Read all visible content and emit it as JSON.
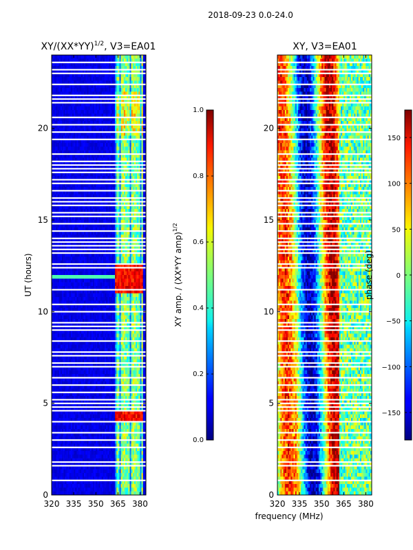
{
  "figure": {
    "suptitle": "2018-09-23 0.0-24.0",
    "shared_xlabel": "frequency (MHz)"
  },
  "chart_data": [
    {
      "type": "heatmap",
      "title_main": "XY/(XX*YY)",
      "title_sup": "1/2",
      "title_tail": ", V3=EA01",
      "xlabel": "frequency (MHz)",
      "ylabel": "UT (hours)",
      "xlim": [
        320,
        384
      ],
      "ylim": [
        0,
        24
      ],
      "xticks": [
        320,
        335,
        350,
        365,
        380
      ],
      "yticks": [
        0,
        5,
        10,
        15,
        20
      ],
      "colormap": "jet",
      "colorbar": {
        "label_main": "XY amp. / (XX*YY amp)",
        "label_sup": "1/2",
        "vmin": 0.0,
        "vmax": 1.0,
        "ticks": [
          0.0,
          0.2,
          0.4,
          0.6,
          0.8,
          1.0
        ],
        "tick_labels": [
          "0.0",
          "0.2",
          "0.4",
          "0.6",
          "0.8",
          "1.0"
        ]
      }
    },
    {
      "type": "heatmap",
      "title_main": "XY",
      "title_tail": ", V3=EA01",
      "xlabel": "frequency (MHz)",
      "ylabel": "",
      "xlim": [
        320,
        384
      ],
      "ylim": [
        0,
        24
      ],
      "xticks": [
        320,
        335,
        350,
        365,
        380
      ],
      "yticks": [
        0,
        5,
        10,
        15,
        20
      ],
      "colormap": "jet",
      "colorbar": {
        "label": "phase (deg)",
        "vmin": -180,
        "vmax": 180,
        "ticks": [
          -150,
          -100,
          -50,
          0,
          50,
          100,
          150
        ],
        "tick_labels": [
          "−150",
          "−100",
          "−50",
          "0",
          "50",
          "100",
          "150"
        ]
      }
    }
  ],
  "flagged_ut_hours": [
    0.8,
    1.6,
    1.8,
    2.6,
    3.0,
    3.4,
    4.0,
    4.6,
    4.8,
    5.0,
    5.2,
    5.6,
    6.0,
    6.4,
    7.0,
    7.2,
    7.6,
    7.8,
    8.4,
    9.0,
    9.2,
    9.4,
    10.0,
    10.4,
    11.2,
    12.4,
    12.6,
    13.2,
    13.4,
    13.6,
    13.8,
    14.0,
    14.4,
    14.8,
    15.2,
    15.4,
    15.8,
    16.0,
    16.2,
    16.6,
    17.0,
    17.2,
    17.6,
    17.8,
    18.0,
    18.2,
    18.6,
    19.4,
    19.8,
    20.2,
    20.6,
    21.4,
    21.6,
    21.8,
    22.4,
    23.0,
    23.2,
    23.6
  ]
}
